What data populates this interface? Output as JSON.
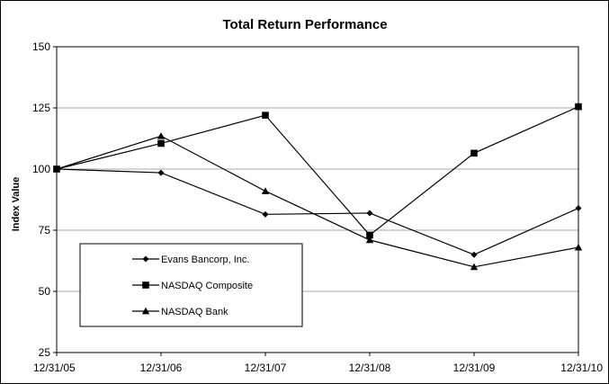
{
  "chart_data": {
    "type": "line",
    "title": "Total Return Performance",
    "xlabel": "",
    "ylabel": "Index Value",
    "categories": [
      "12/31/05",
      "12/31/06",
      "12/31/07",
      "12/31/08",
      "12/31/09",
      "12/31/10"
    ],
    "ylim": [
      25,
      150
    ],
    "yticks": [
      25,
      50,
      75,
      100,
      125,
      150
    ],
    "grid": true,
    "legend_position": "lower-left",
    "series": [
      {
        "name": "Evans Bancorp, Inc.",
        "marker": "diamond",
        "values": [
          100,
          98.5,
          81.5,
          82,
          65,
          84
        ]
      },
      {
        "name": "NASDAQ Composite",
        "marker": "square",
        "values": [
          100,
          110.5,
          122,
          73,
          106.5,
          125.5
        ]
      },
      {
        "name": "NASDAQ Bank",
        "marker": "triangle",
        "values": [
          100,
          113.5,
          91,
          71,
          60,
          68
        ]
      }
    ]
  }
}
